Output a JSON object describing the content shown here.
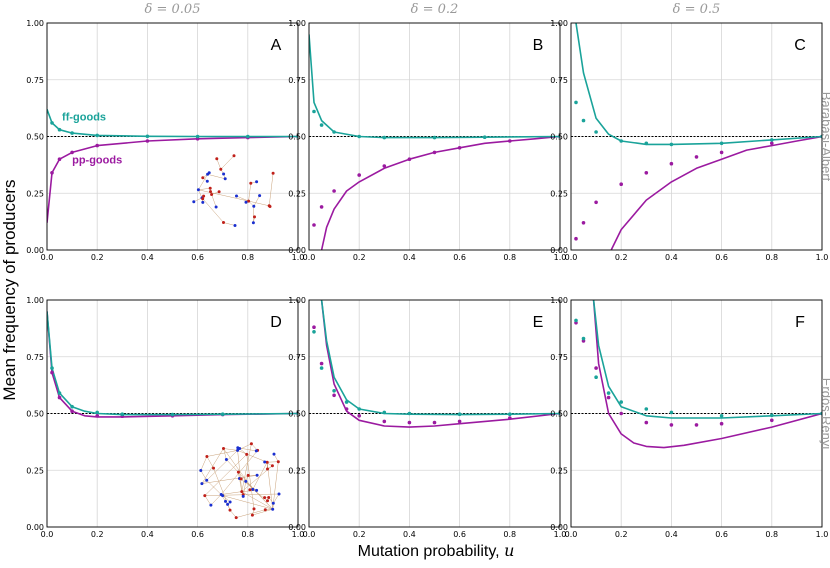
{
  "chart_data": {
    "type": "line",
    "ylabel": "Mean frequency of producers",
    "xlabel_text": "Mutation probability, ",
    "xlabel_symbol": "u",
    "columns": [
      "δ = 0.05",
      "δ = 0.2",
      "δ = 0.5"
    ],
    "rows": [
      "Barabási-Albert",
      "Erdős-Rényi"
    ],
    "xlim": [
      0,
      1
    ],
    "ylim": [
      0,
      1
    ],
    "xticks": [
      "0.0",
      "0.2",
      "0.4",
      "0.6",
      "0.8",
      "1.0"
    ],
    "yticks": [
      "0.00",
      "0.25",
      "0.50",
      "0.75",
      "1.00"
    ],
    "colors": {
      "ff": "#1aa39a",
      "pp": "#9b1aa0",
      "ref": "#000000"
    },
    "series_labels": {
      "ff": "ff-goods",
      "pp": "pp-goods"
    },
    "panels": [
      {
        "letter": "A",
        "row": 0,
        "col": 0,
        "labels": true,
        "inset": "ba",
        "ff_line": {
          "x": [
            0,
            0.02,
            0.05,
            0.1,
            0.2,
            0.4,
            0.6,
            0.8,
            1.0
          ],
          "y": [
            0.62,
            0.56,
            0.53,
            0.515,
            0.505,
            0.501,
            0.5,
            0.5,
            0.5
          ]
        },
        "pp_line": {
          "x": [
            0,
            0.02,
            0.05,
            0.1,
            0.2,
            0.4,
            0.6,
            0.8,
            1.0
          ],
          "y": [
            0.12,
            0.34,
            0.4,
            0.43,
            0.46,
            0.48,
            0.49,
            0.495,
            0.5
          ]
        },
        "ff_pts": {
          "x": [
            0.02,
            0.05,
            0.1,
            0.2,
            0.4,
            0.6,
            0.8,
            1.0
          ],
          "y": [
            0.56,
            0.53,
            0.515,
            0.505,
            0.501,
            0.5,
            0.5,
            0.5
          ]
        },
        "pp_pts": {
          "x": [
            0.02,
            0.05,
            0.1,
            0.2,
            0.4,
            0.6,
            0.8,
            1.0
          ],
          "y": [
            0.34,
            0.4,
            0.43,
            0.46,
            0.48,
            0.49,
            0.495,
            0.5
          ]
        }
      },
      {
        "letter": "B",
        "row": 0,
        "col": 1,
        "labels": false,
        "ff_line": {
          "x": [
            0.0,
            0.02,
            0.05,
            0.1,
            0.2,
            0.3,
            0.5,
            0.7,
            1.0
          ],
          "y": [
            0.95,
            0.65,
            0.57,
            0.52,
            0.5,
            0.495,
            0.495,
            0.497,
            0.5
          ]
        },
        "pp_line": {
          "x": [
            0.05,
            0.07,
            0.1,
            0.15,
            0.2,
            0.3,
            0.4,
            0.5,
            0.6,
            0.7,
            0.8,
            0.9,
            1.0
          ],
          "y": [
            0.0,
            0.1,
            0.18,
            0.26,
            0.3,
            0.36,
            0.4,
            0.43,
            0.45,
            0.47,
            0.48,
            0.49,
            0.5
          ]
        },
        "ff_pts": {
          "x": [
            0.02,
            0.05,
            0.1,
            0.2,
            0.3,
            0.5,
            0.7,
            1.0
          ],
          "y": [
            0.61,
            0.55,
            0.52,
            0.5,
            0.495,
            0.495,
            0.497,
            0.5
          ]
        },
        "pp_pts": {
          "x": [
            0.02,
            0.05,
            0.1,
            0.2,
            0.3,
            0.4,
            0.5,
            0.6,
            0.8,
            1.0
          ],
          "y": [
            0.11,
            0.19,
            0.26,
            0.33,
            0.37,
            0.4,
            0.43,
            0.45,
            0.48,
            0.5
          ]
        }
      },
      {
        "letter": "C",
        "row": 0,
        "col": 2,
        "labels": false,
        "ff_line": {
          "x": [
            0.02,
            0.05,
            0.1,
            0.15,
            0.2,
            0.3,
            0.4,
            0.6,
            0.8,
            1.0
          ],
          "y": [
            1.0,
            0.78,
            0.58,
            0.51,
            0.48,
            0.465,
            0.465,
            0.47,
            0.485,
            0.5
          ]
        },
        "pp_line": {
          "x": [
            0.16,
            0.2,
            0.3,
            0.4,
            0.5,
            0.6,
            0.7,
            0.8,
            0.9,
            1.0
          ],
          "y": [
            0.0,
            0.09,
            0.22,
            0.3,
            0.36,
            0.4,
            0.44,
            0.46,
            0.48,
            0.5
          ]
        },
        "ff_pts": {
          "x": [
            0.02,
            0.05,
            0.1,
            0.2,
            0.3,
            0.4,
            0.6,
            0.8,
            1.0
          ],
          "y": [
            0.65,
            0.57,
            0.52,
            0.48,
            0.47,
            0.465,
            0.47,
            0.485,
            0.5
          ]
        },
        "pp_pts": {
          "x": [
            0.02,
            0.05,
            0.1,
            0.2,
            0.3,
            0.4,
            0.5,
            0.6,
            0.8,
            1.0
          ],
          "y": [
            0.05,
            0.12,
            0.21,
            0.29,
            0.34,
            0.38,
            0.41,
            0.43,
            0.47,
            0.5
          ]
        }
      },
      {
        "letter": "D",
        "row": 1,
        "col": 0,
        "labels": false,
        "inset": "er",
        "ff_line": {
          "x": [
            0,
            0.02,
            0.05,
            0.1,
            0.15,
            0.2,
            0.3,
            0.5,
            0.7,
            1.0
          ],
          "y": [
            0.95,
            0.7,
            0.59,
            0.53,
            0.51,
            0.5,
            0.495,
            0.495,
            0.497,
            0.5
          ]
        },
        "pp_line": {
          "x": [
            0,
            0.02,
            0.05,
            0.1,
            0.15,
            0.2,
            0.3,
            0.5,
            0.7,
            1.0
          ],
          "y": [
            0.95,
            0.68,
            0.57,
            0.51,
            0.49,
            0.485,
            0.485,
            0.49,
            0.495,
            0.5
          ]
        },
        "ff_pts": {
          "x": [
            0.02,
            0.05,
            0.1,
            0.2,
            0.3,
            0.5,
            0.7,
            1.0
          ],
          "y": [
            0.7,
            0.59,
            0.53,
            0.505,
            0.497,
            0.495,
            0.497,
            0.5
          ]
        },
        "pp_pts": {
          "x": [
            0.02,
            0.05,
            0.1,
            0.2,
            0.3,
            0.5,
            0.7,
            1.0
          ],
          "y": [
            0.68,
            0.57,
            0.51,
            0.49,
            0.488,
            0.49,
            0.495,
            0.5
          ]
        }
      },
      {
        "letter": "E",
        "row": 1,
        "col": 1,
        "labels": false,
        "ff_line": {
          "x": [
            0.05,
            0.07,
            0.1,
            0.15,
            0.2,
            0.3,
            0.4,
            0.6,
            0.8,
            1.0
          ],
          "y": [
            1.0,
            0.82,
            0.66,
            0.56,
            0.52,
            0.5,
            0.497,
            0.495,
            0.497,
            0.5
          ]
        },
        "pp_line": {
          "x": [
            0.05,
            0.07,
            0.1,
            0.15,
            0.2,
            0.3,
            0.4,
            0.5,
            0.6,
            0.8,
            1.0
          ],
          "y": [
            1.0,
            0.8,
            0.63,
            0.51,
            0.47,
            0.445,
            0.44,
            0.445,
            0.455,
            0.475,
            0.5
          ]
        },
        "ff_pts": {
          "x": [
            0.02,
            0.05,
            0.1,
            0.15,
            0.2,
            0.3,
            0.4,
            0.6,
            0.8,
            1.0
          ],
          "y": [
            0.86,
            0.7,
            0.6,
            0.55,
            0.52,
            0.505,
            0.5,
            0.497,
            0.497,
            0.5
          ]
        },
        "pp_pts": {
          "x": [
            0.02,
            0.05,
            0.1,
            0.15,
            0.2,
            0.3,
            0.4,
            0.5,
            0.6,
            0.8,
            1.0
          ],
          "y": [
            0.88,
            0.72,
            0.58,
            0.52,
            0.49,
            0.465,
            0.46,
            0.46,
            0.465,
            0.48,
            0.5
          ]
        }
      },
      {
        "letter": "F",
        "row": 1,
        "col": 2,
        "labels": false,
        "ff_line": {
          "x": [
            0.09,
            0.11,
            0.15,
            0.2,
            0.3,
            0.4,
            0.6,
            0.8,
            1.0
          ],
          "y": [
            1.0,
            0.8,
            0.62,
            0.53,
            0.49,
            0.48,
            0.48,
            0.49,
            0.5
          ]
        },
        "pp_line": {
          "x": [
            0.09,
            0.11,
            0.15,
            0.2,
            0.25,
            0.3,
            0.37,
            0.45,
            0.6,
            0.8,
            1.0
          ],
          "y": [
            1.0,
            0.72,
            0.5,
            0.41,
            0.37,
            0.355,
            0.35,
            0.36,
            0.39,
            0.44,
            0.5
          ]
        },
        "ff_pts": {
          "x": [
            0.02,
            0.05,
            0.1,
            0.15,
            0.2,
            0.3,
            0.4,
            0.6,
            0.8,
            1.0
          ],
          "y": [
            0.91,
            0.83,
            0.66,
            0.59,
            0.55,
            0.52,
            0.505,
            0.49,
            0.492,
            0.5
          ]
        },
        "pp_pts": {
          "x": [
            0.02,
            0.05,
            0.1,
            0.15,
            0.2,
            0.3,
            0.4,
            0.5,
            0.6,
            0.8,
            1.0
          ],
          "y": [
            0.9,
            0.82,
            0.7,
            0.57,
            0.5,
            0.46,
            0.45,
            0.45,
            0.455,
            0.47,
            0.5
          ]
        }
      }
    ]
  }
}
